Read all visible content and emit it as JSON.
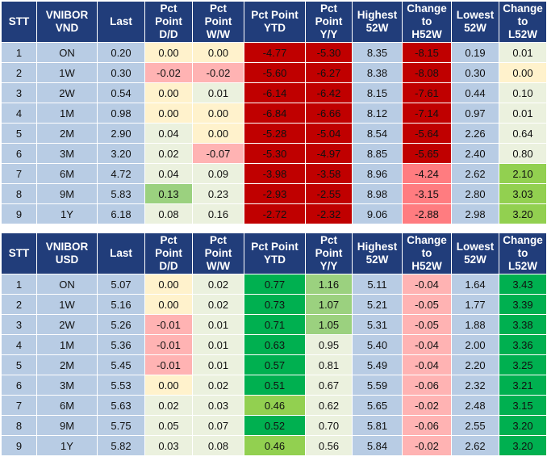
{
  "colors": {
    "header_bg": "#213d7a",
    "header_text": "#ffffff",
    "light_blue": "#b8cce4",
    "light_green": "#ebf1de",
    "cream": "#fff2cc",
    "pink": "#ffb3b3",
    "dark_red": "#c00000",
    "medium_red": "#ff7c80",
    "medium_green": "#9bd17f",
    "strong_green": "#00b050",
    "bright_green": "#92d050",
    "pale_green": "#c6e0b4"
  },
  "tables": [
    {
      "headers": [
        "STT",
        "VNIBOR\nVND",
        "Last",
        "Pct\nPoint\nD/D",
        "Pct\nPoint\nW/W",
        "Pct Point\nYTD",
        "Pct\nPoint\nY/Y",
        "Highest\n52W",
        "Change\nto\nH52W",
        "Lowest\n52W",
        "Change\nto\nL52W"
      ],
      "rows": [
        [
          "1",
          "ON",
          "0.20",
          "0.00",
          "0.00",
          "-4.77",
          "-5.30",
          "8.35",
          "-8.15",
          "0.19",
          "0.01"
        ],
        [
          "2",
          "1W",
          "0.30",
          "-0.02",
          "-0.02",
          "-5.60",
          "-6.27",
          "8.38",
          "-8.08",
          "0.30",
          "0.00"
        ],
        [
          "3",
          "2W",
          "0.54",
          "0.00",
          "0.01",
          "-6.14",
          "-6.42",
          "8.15",
          "-7.61",
          "0.44",
          "0.10"
        ],
        [
          "4",
          "1M",
          "0.98",
          "0.00",
          "0.00",
          "-6.84",
          "-6.66",
          "8.12",
          "-7.14",
          "0.97",
          "0.01"
        ],
        [
          "5",
          "2M",
          "2.90",
          "0.04",
          "0.00",
          "-5.28",
          "-5.04",
          "8.54",
          "-5.64",
          "2.26",
          "0.64"
        ],
        [
          "6",
          "3M",
          "3.20",
          "0.02",
          "-0.07",
          "-5.30",
          "-4.97",
          "8.85",
          "-5.65",
          "2.40",
          "0.80"
        ],
        [
          "7",
          "6M",
          "4.72",
          "0.04",
          "0.09",
          "-3.98",
          "-3.58",
          "8.96",
          "-4.24",
          "2.62",
          "2.10"
        ],
        [
          "8",
          "9M",
          "5.83",
          "0.13",
          "0.23",
          "-2.93",
          "-2.55",
          "8.98",
          "-3.15",
          "2.80",
          "3.03"
        ],
        [
          "9",
          "1Y",
          "6.18",
          "0.08",
          "0.16",
          "-2.72",
          "-2.32",
          "9.06",
          "-2.88",
          "2.98",
          "3.20"
        ]
      ],
      "cell_colors": [
        [
          "blue",
          "blue",
          "blue",
          "cream",
          "cream",
          "red",
          "red",
          "blue",
          "red",
          "blue",
          "green-l"
        ],
        [
          "blue",
          "blue",
          "blue",
          "pink",
          "pink",
          "red",
          "red",
          "blue",
          "red",
          "blue",
          "cream"
        ],
        [
          "blue",
          "blue",
          "blue",
          "cream",
          "green-l",
          "red",
          "red",
          "blue",
          "red",
          "blue",
          "green-l"
        ],
        [
          "blue",
          "blue",
          "blue",
          "cream",
          "cream",
          "red",
          "red",
          "blue",
          "red",
          "blue",
          "green-l"
        ],
        [
          "blue",
          "blue",
          "blue",
          "green-l",
          "cream",
          "red",
          "red",
          "blue",
          "red",
          "blue",
          "green-l"
        ],
        [
          "blue",
          "blue",
          "blue",
          "green-l",
          "pink",
          "red",
          "red",
          "blue",
          "red",
          "blue",
          "green-l"
        ],
        [
          "blue",
          "blue",
          "blue",
          "green-l",
          "green-l",
          "red",
          "red",
          "blue",
          "redm",
          "blue",
          "gc"
        ],
        [
          "blue",
          "blue",
          "blue",
          "gm",
          "green-l",
          "red",
          "red",
          "blue",
          "redm",
          "blue",
          "gc"
        ],
        [
          "blue",
          "blue",
          "blue",
          "green-l",
          "green-l",
          "red",
          "red",
          "blue",
          "redm",
          "blue",
          "gc"
        ]
      ]
    },
    {
      "headers": [
        "STT",
        "VNIBOR\nUSD",
        "Last",
        "Pct\nPoint\nD/D",
        "Pct\nPoint\nW/W",
        "Pct Point\nYTD",
        "Pct\nPoint\nY/Y",
        "Highest\n52W",
        "Change\nto\nH52W",
        "Lowest\n52W",
        "Change\nto\nL52W"
      ],
      "rows": [
        [
          "1",
          "ON",
          "5.07",
          "0.00",
          "0.02",
          "0.77",
          "1.16",
          "5.11",
          "-0.04",
          "1.64",
          "3.43"
        ],
        [
          "2",
          "1W",
          "5.16",
          "0.00",
          "0.02",
          "0.73",
          "1.07",
          "5.21",
          "-0.05",
          "1.77",
          "3.39"
        ],
        [
          "3",
          "2W",
          "5.26",
          "-0.01",
          "0.01",
          "0.71",
          "1.05",
          "5.31",
          "-0.05",
          "1.88",
          "3.38"
        ],
        [
          "4",
          "1M",
          "5.36",
          "-0.01",
          "0.01",
          "0.63",
          "0.95",
          "5.40",
          "-0.04",
          "2.00",
          "3.36"
        ],
        [
          "5",
          "2M",
          "5.45",
          "-0.01",
          "0.01",
          "0.57",
          "0.81",
          "5.49",
          "-0.04",
          "2.20",
          "3.25"
        ],
        [
          "6",
          "3M",
          "5.53",
          "0.00",
          "0.02",
          "0.51",
          "0.67",
          "5.59",
          "-0.06",
          "2.32",
          "3.21"
        ],
        [
          "7",
          "6M",
          "5.63",
          "0.02",
          "0.03",
          "0.46",
          "0.62",
          "5.65",
          "-0.02",
          "2.48",
          "3.15"
        ],
        [
          "8",
          "9M",
          "5.75",
          "0.05",
          "0.07",
          "0.52",
          "0.70",
          "5.81",
          "-0.06",
          "2.55",
          "3.20"
        ],
        [
          "9",
          "1Y",
          "5.82",
          "0.03",
          "0.08",
          "0.46",
          "0.56",
          "5.84",
          "-0.02",
          "2.62",
          "3.20"
        ]
      ],
      "cell_colors": [
        [
          "blue",
          "blue",
          "blue",
          "cream",
          "green-l",
          "gs",
          "gm",
          "blue",
          "pink",
          "blue",
          "gs"
        ],
        [
          "blue",
          "blue",
          "blue",
          "cream",
          "green-l",
          "gs",
          "gm",
          "blue",
          "pink",
          "blue",
          "gs"
        ],
        [
          "blue",
          "blue",
          "blue",
          "pink",
          "green-l",
          "gs",
          "gm",
          "blue",
          "pink",
          "blue",
          "gs"
        ],
        [
          "blue",
          "blue",
          "blue",
          "pink",
          "green-l",
          "gs",
          "green-l",
          "blue",
          "pink",
          "blue",
          "gs"
        ],
        [
          "blue",
          "blue",
          "blue",
          "pink",
          "green-l",
          "gs",
          "green-l",
          "blue",
          "pink",
          "blue",
          "gs"
        ],
        [
          "blue",
          "blue",
          "blue",
          "cream",
          "green-l",
          "gs",
          "green-l",
          "blue",
          "pink",
          "blue",
          "gs"
        ],
        [
          "blue",
          "blue",
          "blue",
          "green-l",
          "green-l",
          "gc",
          "green-l",
          "blue",
          "pink",
          "blue",
          "gs"
        ],
        [
          "blue",
          "blue",
          "blue",
          "green-l",
          "green-l",
          "gs",
          "green-l",
          "blue",
          "pink",
          "blue",
          "gs"
        ],
        [
          "blue",
          "blue",
          "blue",
          "green-l",
          "green-l",
          "gc",
          "green-l",
          "blue",
          "pink",
          "blue",
          "gs"
        ]
      ]
    }
  ]
}
